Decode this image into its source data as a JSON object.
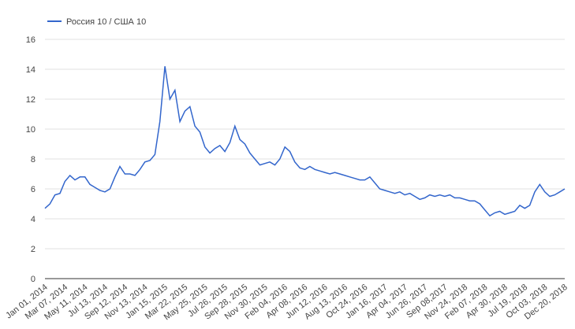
{
  "chart_data": {
    "type": "line",
    "categories": [
      "Jan 01, 2014",
      null,
      null,
      null,
      "Mar 07, 2014",
      null,
      null,
      null,
      "May 11, 2014",
      null,
      null,
      null,
      "Jul 13, 2014",
      null,
      null,
      null,
      "Sep 12, 2014",
      null,
      null,
      null,
      "Nov 13, 2014",
      null,
      null,
      null,
      "Jan 15, 2015",
      null,
      null,
      null,
      "Mar 22, 2015",
      null,
      null,
      null,
      "May 25, 2015",
      null,
      null,
      null,
      "Jul 26, 2015",
      null,
      null,
      null,
      "Sep 28, 2015",
      null,
      null,
      null,
      "Nov 30, 2015",
      null,
      null,
      null,
      "Feb 04, 2016",
      null,
      null,
      null,
      "Apr 08, 2016",
      null,
      null,
      null,
      "Jun 12, 2016",
      null,
      null,
      null,
      "Aug 13, 2016",
      null,
      null,
      null,
      "Oct 24, 2016",
      null,
      null,
      null,
      "Jan 16, 2017",
      null,
      null,
      null,
      "Apr 04, 2017",
      null,
      null,
      null,
      "Jun 26, 2017",
      null,
      null,
      null,
      "Sep 08,2017",
      null,
      null,
      null,
      "Nov 24, 2018",
      null,
      null,
      null,
      "Feb 07, 2018",
      null,
      null,
      null,
      "Apr 30, 2018",
      null,
      null,
      null,
      "Jul 19, 2018",
      null,
      null,
      null,
      "Oct 03, 2018",
      null,
      null,
      null,
      "Dec 20, 2018"
    ],
    "series": [
      {
        "name": "Россия 10 / США 10",
        "color": "#3366cc",
        "values": [
          4.7,
          5.0,
          5.6,
          5.7,
          6.5,
          6.9,
          6.6,
          6.8,
          6.8,
          6.3,
          6.1,
          5.9,
          5.8,
          6.0,
          6.8,
          7.5,
          7.0,
          7.0,
          6.9,
          7.3,
          7.8,
          7.9,
          8.3,
          10.5,
          14.2,
          12.0,
          12.6,
          10.5,
          11.2,
          11.5,
          10.2,
          9.8,
          8.8,
          8.4,
          8.7,
          8.9,
          8.5,
          9.1,
          10.2,
          9.3,
          9.0,
          8.4,
          8.0,
          7.6,
          7.7,
          7.8,
          7.6,
          8.0,
          8.8,
          8.5,
          7.8,
          7.4,
          7.3,
          7.5,
          7.3,
          7.2,
          7.1,
          7.0,
          7.1,
          7.0,
          6.9,
          6.8,
          6.7,
          6.6,
          6.6,
          6.8,
          6.4,
          6.0,
          5.9,
          5.8,
          5.7,
          5.8,
          5.6,
          5.7,
          5.5,
          5.3,
          5.4,
          5.6,
          5.5,
          5.6,
          5.5,
          5.6,
          5.4,
          5.4,
          5.3,
          5.2,
          5.2,
          5.0,
          4.6,
          4.2,
          4.4,
          4.5,
          4.3,
          4.4,
          4.5,
          4.9,
          4.7,
          4.9,
          5.8,
          6.3,
          5.8,
          5.5,
          5.6,
          5.8,
          6.0
        ]
      }
    ],
    "ylim": [
      0,
      16
    ],
    "yticks": [
      0,
      2,
      4,
      6,
      8,
      10,
      12,
      14,
      16
    ],
    "grid": true,
    "legend": "top-left"
  }
}
